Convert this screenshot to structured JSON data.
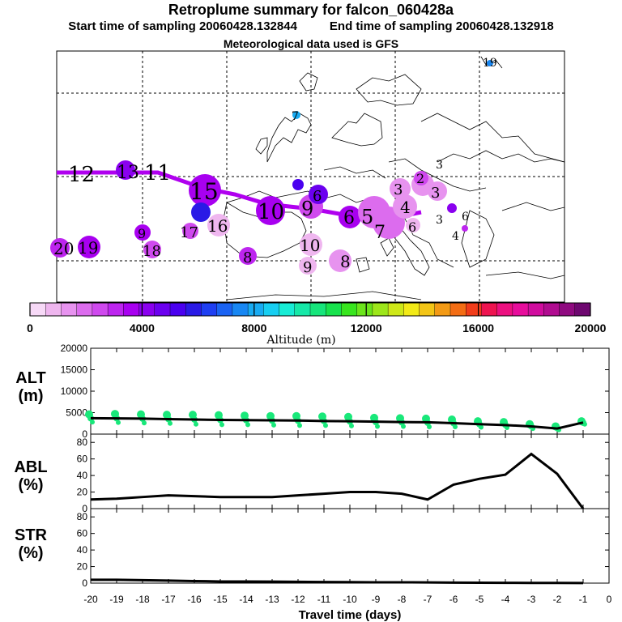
{
  "header": {
    "title": "Retroplume summary for falcon_060428a",
    "start_label": "Start time of sampling 20060428.132844",
    "end_label": "End time of sampling 20060428.132918",
    "met_label": "Meteorological data used is GFS"
  },
  "colorbar": {
    "label": "Altitude (m)",
    "ticks": [
      "0",
      "4000",
      "8000",
      "12000",
      "16000",
      "20000"
    ],
    "colors": [
      "#f7d9f7",
      "#efb6ef",
      "#e793ef",
      "#dc6cee",
      "#cf49ee",
      "#bd25ef",
      "#a800f0",
      "#8a00ef",
      "#6b00ef",
      "#4a00ef",
      "#2a1ae6",
      "#1f3ff2",
      "#1a63f3",
      "#1887f3",
      "#18abf2",
      "#17cef1",
      "#17ecd5",
      "#16e8a8",
      "#16e57b",
      "#17e24d",
      "#38e51e",
      "#6be51b",
      "#9de61a",
      "#cee818",
      "#f2ea17",
      "#f3c516",
      "#f39a15",
      "#f36d14",
      "#f13c1a",
      "#ee1450",
      "#ec1080",
      "#e70d9c",
      "#d00c9e",
      "#b00c90",
      "#8f0a80",
      "#6e0870"
    ]
  },
  "map_labels": [
    {
      "text": "12",
      "day": "-12"
    },
    {
      "text": "13",
      "day": "-13"
    },
    {
      "text": "11",
      "day": "-11"
    },
    {
      "text": "15",
      "day": "-15"
    },
    {
      "text": "10",
      "day": "-10"
    },
    {
      "text": "9",
      "day": "-9"
    },
    {
      "text": "7",
      "day": "-7"
    },
    {
      "text": "6",
      "day": "-6"
    },
    {
      "text": "20",
      "day": "-20"
    },
    {
      "text": "19",
      "day": "-19"
    },
    {
      "text": "18",
      "day": "-18"
    },
    {
      "text": "17",
      "day": "-17"
    },
    {
      "text": "16",
      "day": "-16"
    },
    {
      "text": "8",
      "day": "-8"
    },
    {
      "text": "5",
      "day": "-5"
    },
    {
      "text": "4",
      "day": "-4"
    },
    {
      "text": "3",
      "day": "-3"
    },
    {
      "text": "2",
      "day": "-2"
    }
  ],
  "panels": {
    "alt": {
      "label": "ALT",
      "unit": "(m)"
    },
    "abl": {
      "label": "ABL",
      "unit": "(%)"
    },
    "str": {
      "label": "STR",
      "unit": "(%)"
    }
  },
  "xaxis": {
    "label": "Travel time (days)",
    "ticks": [
      "-20",
      "-19",
      "-18",
      "-17",
      "-16",
      "-15",
      "-14",
      "-13",
      "-12",
      "-11",
      "-10",
      "-9",
      "-8",
      "-7",
      "-6",
      "-5",
      "-4",
      "-3",
      "-2",
      "-1",
      "0"
    ]
  },
  "chart_data": [
    {
      "type": "line",
      "title": "ALT (m)",
      "xlabel": "Travel time (days)",
      "ylabel": "ALT (m)",
      "ylim": [
        0,
        20000
      ],
      "yticks": [
        "0",
        "5000",
        "10000",
        "15000",
        "20000"
      ],
      "x": [
        -20,
        -19,
        -18,
        -17,
        -16,
        -15,
        -14,
        -13,
        -12,
        -11,
        -10,
        -9,
        -8,
        -7,
        -6,
        -5,
        -4,
        -3,
        -2,
        -1
      ],
      "series": [
        {
          "name": "mean altitude",
          "values": [
            3700,
            3650,
            3600,
            3500,
            3400,
            3300,
            3250,
            3200,
            3150,
            3050,
            3000,
            2900,
            2800,
            2750,
            2550,
            2300,
            2100,
            1800,
            1300,
            2700
          ]
        },
        {
          "name": "particle altitudes upper",
          "values": [
            4600,
            4700,
            4600,
            4500,
            4500,
            4400,
            4300,
            4200,
            4200,
            4100,
            4000,
            3800,
            3700,
            3600,
            3400,
            3000,
            2800,
            2300,
            1800,
            3000
          ]
        },
        {
          "name": "particle altitudes lower",
          "values": [
            2800,
            2700,
            2600,
            2500,
            2300,
            2200,
            2200,
            2100,
            2000,
            2000,
            1900,
            1800,
            1800,
            1700,
            1700,
            1600,
            1500,
            1300,
            1000,
            2300
          ]
        }
      ]
    },
    {
      "type": "line",
      "title": "ABL (%)",
      "xlabel": "Travel time (days)",
      "ylabel": "ABL (%)",
      "ylim": [
        0,
        90
      ],
      "yticks": [
        "0",
        "20",
        "40",
        "60",
        "80"
      ],
      "x": [
        -20,
        -19,
        -18,
        -17,
        -16,
        -15,
        -14,
        -13,
        -12,
        -11,
        -10,
        -9,
        -8,
        -7,
        -6,
        -5,
        -4,
        -3,
        -2,
        -1
      ],
      "series": [
        {
          "name": "ABL fraction",
          "values": [
            11,
            12,
            14,
            16,
            15,
            14,
            14,
            14,
            16,
            18,
            20,
            20,
            18,
            11,
            29,
            36,
            41,
            66,
            42,
            0
          ]
        }
      ]
    },
    {
      "type": "line",
      "title": "STR (%)",
      "xlabel": "Travel time (days)",
      "ylabel": "STR (%)",
      "ylim": [
        0,
        90
      ],
      "yticks": [
        "0",
        "20",
        "40",
        "60",
        "80"
      ],
      "x": [
        -20,
        -19,
        -18,
        -17,
        -16,
        -15,
        -14,
        -13,
        -12,
        -11,
        -10,
        -9,
        -8,
        -7,
        -6,
        -5,
        -4,
        -3,
        -2,
        -1
      ],
      "series": [
        {
          "name": "STR fraction",
          "values": [
            4,
            4,
            3.5,
            3,
            2.5,
            2,
            2,
            1.8,
            1.6,
            1.4,
            1.2,
            1,
            1,
            0.8,
            0.6,
            0.5,
            0.4,
            0.3,
            0.2,
            0.1
          ]
        }
      ]
    }
  ]
}
